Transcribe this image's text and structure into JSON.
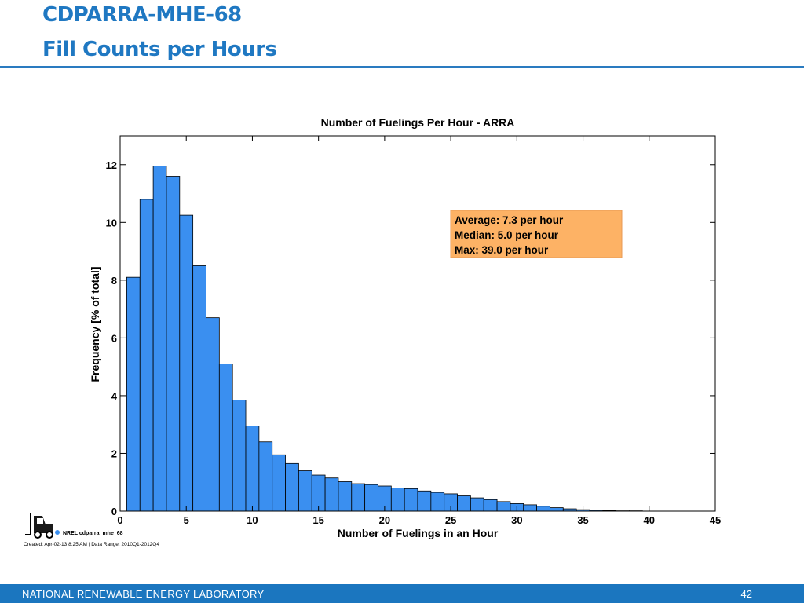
{
  "slide": {
    "title_line1": "CDPARRA-MHE-68",
    "title_line2": "Fill Counts per Hours",
    "footer_org": "NATIONAL RENEWABLE ENERGY LABORATORY",
    "page_number": "42",
    "nrel_stamp": "NREL cdparra_mhe_68",
    "created": "Created: Apr-02-13  8:25 AM | Data Range: 2010Q1-2012Q4",
    "accent_color": "#1f78c2",
    "footer_color": "#1b76bf"
  },
  "chart_data": {
    "type": "bar",
    "title": "Number of Fuelings Per Hour - ARRA",
    "xlabel": "Number of Fuelings in an Hour",
    "ylabel": "Frequency [% of total]",
    "xlim": [
      0,
      45
    ],
    "ylim": [
      0,
      13
    ],
    "xticks": [
      0,
      5,
      10,
      15,
      20,
      25,
      30,
      35,
      40,
      45
    ],
    "yticks": [
      0,
      2,
      4,
      6,
      8,
      10,
      12
    ],
    "bin_width": 1,
    "x": [
      1,
      2,
      3,
      4,
      5,
      6,
      7,
      8,
      9,
      10,
      11,
      12,
      13,
      14,
      15,
      16,
      17,
      18,
      19,
      20,
      21,
      22,
      23,
      24,
      25,
      26,
      27,
      28,
      29,
      30,
      31,
      32,
      33,
      34,
      35,
      36,
      37,
      38,
      39
    ],
    "values": [
      8.1,
      10.8,
      11.95,
      11.6,
      10.25,
      8.5,
      6.7,
      5.1,
      3.85,
      2.95,
      2.4,
      1.95,
      1.65,
      1.4,
      1.25,
      1.15,
      1.02,
      0.95,
      0.92,
      0.87,
      0.8,
      0.78,
      0.7,
      0.65,
      0.6,
      0.53,
      0.46,
      0.4,
      0.33,
      0.26,
      0.22,
      0.17,
      0.12,
      0.08,
      0.05,
      0.03,
      0.02,
      0.01,
      0.01
    ],
    "bar_color": "#3a8ff0",
    "annotation": {
      "lines": [
        "Average: 7.3 per hour",
        "Median: 5.0 per hour",
        "Max: 39.0 per hour"
      ],
      "background": "#fdb265"
    },
    "grid": false
  }
}
